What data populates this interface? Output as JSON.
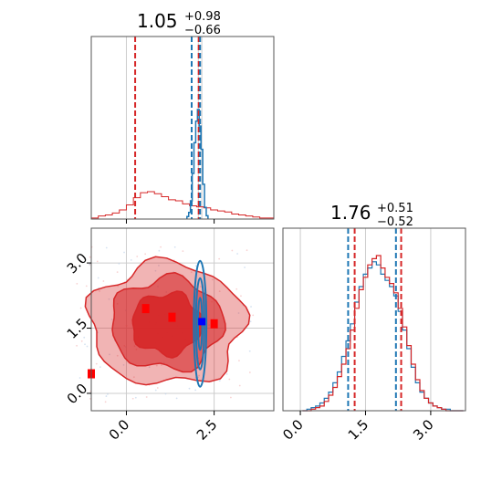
{
  "chart_data": [
    {
      "type": "histogram",
      "panel": "top-left marginal",
      "title": {
        "main": "1.05",
        "sup": "+0.98",
        "sub": "−0.66"
      },
      "xlim": [
        -1.0,
        4.2
      ],
      "hist_red": [
        {
          "x": [
            -0.9,
            -0.7,
            -0.5,
            -0.3,
            -0.1,
            0.1,
            0.3,
            0.5,
            0.7,
            0.9,
            1.1,
            1.3,
            1.5,
            1.7,
            1.9,
            2.1,
            2.3,
            2.5,
            2.7,
            2.9,
            3.1,
            3.3,
            3.5,
            3.7,
            3.9,
            4.1
          ],
          "y": [
            1,
            3,
            4,
            6,
            9,
            14,
            21,
            26,
            27,
            25,
            22,
            19,
            18,
            15,
            13,
            12,
            11,
            9,
            8,
            7,
            5,
            4,
            3,
            2,
            1,
            1
          ]
        }
      ],
      "hist_blue": {
        "x": [
          1.75,
          1.8,
          1.85,
          1.9,
          1.95,
          2.0,
          2.05,
          2.1,
          2.15,
          2.2,
          2.25,
          2.3
        ],
        "y": [
          3,
          8,
          22,
          55,
          92,
          118,
          132,
          112,
          84,
          42,
          14,
          4
        ]
      },
      "red_quantiles": [
        0.25,
        2.06
      ],
      "blue_quantiles": [
        1.86,
        2.1
      ],
      "vline_gray": [
        2.05,
        2.15
      ]
    },
    {
      "type": "contour",
      "panel": "bottom-left joint",
      "xlim": [
        -1.0,
        4.2
      ],
      "ylim": [
        -0.4,
        3.8
      ],
      "xticks": [
        "0.0",
        "2.5"
      ],
      "yticks": [
        "0.0",
        "1.5",
        "3.0"
      ],
      "xtick_values": [
        0.0,
        2.5
      ],
      "ytick_values": [
        0.0,
        1.5,
        3.0
      ],
      "red_squares": [
        [
          0.55,
          1.95
        ],
        [
          1.3,
          1.75
        ],
        [
          2.5,
          1.6
        ],
        [
          -1.0,
          0.45
        ]
      ],
      "blue_square": [
        2.15,
        1.65
      ],
      "red_contours": {
        "center": [
          1.15,
          1.6
        ],
        "levels": [
          {
            "rx": 2.2,
            "ry": 1.4,
            "fill_opacity": 0.35
          },
          {
            "rx": 1.6,
            "ry": 1.05,
            "fill_opacity": 0.6
          },
          {
            "rx": 1.0,
            "ry": 0.7,
            "fill_opacity": 0.9
          }
        ]
      },
      "blue_contours": {
        "center": [
          2.1,
          1.6
        ],
        "levels": [
          {
            "rx": 0.18,
            "ry": 1.45
          },
          {
            "rx": 0.12,
            "ry": 1.05
          },
          {
            "rx": 0.06,
            "ry": 0.6
          }
        ]
      }
    },
    {
      "type": "histogram",
      "panel": "bottom-right marginal",
      "title": {
        "main": "1.76",
        "sup": "+0.51",
        "sub": "−0.52"
      },
      "xlim": [
        -0.4,
        3.8
      ],
      "xticks": [
        "0.0",
        "1.5",
        "3.0"
      ],
      "xtick_values": [
        0.0,
        1.5,
        3.0
      ],
      "hist_blue": {
        "x": [
          0.1,
          0.2,
          0.3,
          0.4,
          0.5,
          0.6,
          0.7,
          0.8,
          0.9,
          1.0,
          1.1,
          1.2,
          1.3,
          1.4,
          1.5,
          1.6,
          1.7,
          1.8,
          1.9,
          2.0,
          2.1,
          2.2,
          2.3,
          2.4,
          2.5,
          2.6,
          2.7,
          2.8,
          2.9,
          3.0,
          3.1,
          3.2,
          3.3,
          3.4,
          3.5,
          3.6,
          3.7
        ],
        "y": [
          0,
          1,
          2,
          3,
          5,
          8,
          12,
          18,
          25,
          35,
          45,
          56,
          70,
          80,
          88,
          92,
          96,
          94,
          88,
          84,
          80,
          74,
          64,
          52,
          40,
          28,
          18,
          12,
          8,
          5,
          3,
          2,
          1,
          1,
          0,
          0,
          0
        ]
      },
      "hist_red": {
        "x": [
          0.1,
          0.2,
          0.3,
          0.4,
          0.5,
          0.6,
          0.7,
          0.8,
          0.9,
          1.0,
          1.1,
          1.2,
          1.3,
          1.4,
          1.5,
          1.6,
          1.7,
          1.8,
          1.9,
          2.0,
          2.1,
          2.2,
          2.3,
          2.4,
          2.5,
          2.6,
          2.7,
          2.8,
          2.9,
          3.0,
          3.1,
          3.2,
          3.3,
          3.4,
          3.5,
          3.6,
          3.7
        ],
        "y": [
          0,
          0,
          1,
          2,
          3,
          6,
          10,
          15,
          22,
          30,
          40,
          52,
          66,
          78,
          86,
          94,
          98,
          100,
          92,
          86,
          82,
          76,
          66,
          54,
          42,
          30,
          20,
          13,
          8,
          5,
          3,
          2,
          1,
          0,
          0,
          0,
          0
        ]
      },
      "blue_quantiles": [
        1.1,
        2.2
      ],
      "red_quantiles": [
        1.25,
        2.32
      ],
      "vline_gray": [
        0.0,
        1.5,
        3.0
      ]
    }
  ],
  "colors": {
    "red": "#d62728",
    "blue": "#1f77b4",
    "square_blue": "#0000ff",
    "square_red": "#ff0000"
  }
}
